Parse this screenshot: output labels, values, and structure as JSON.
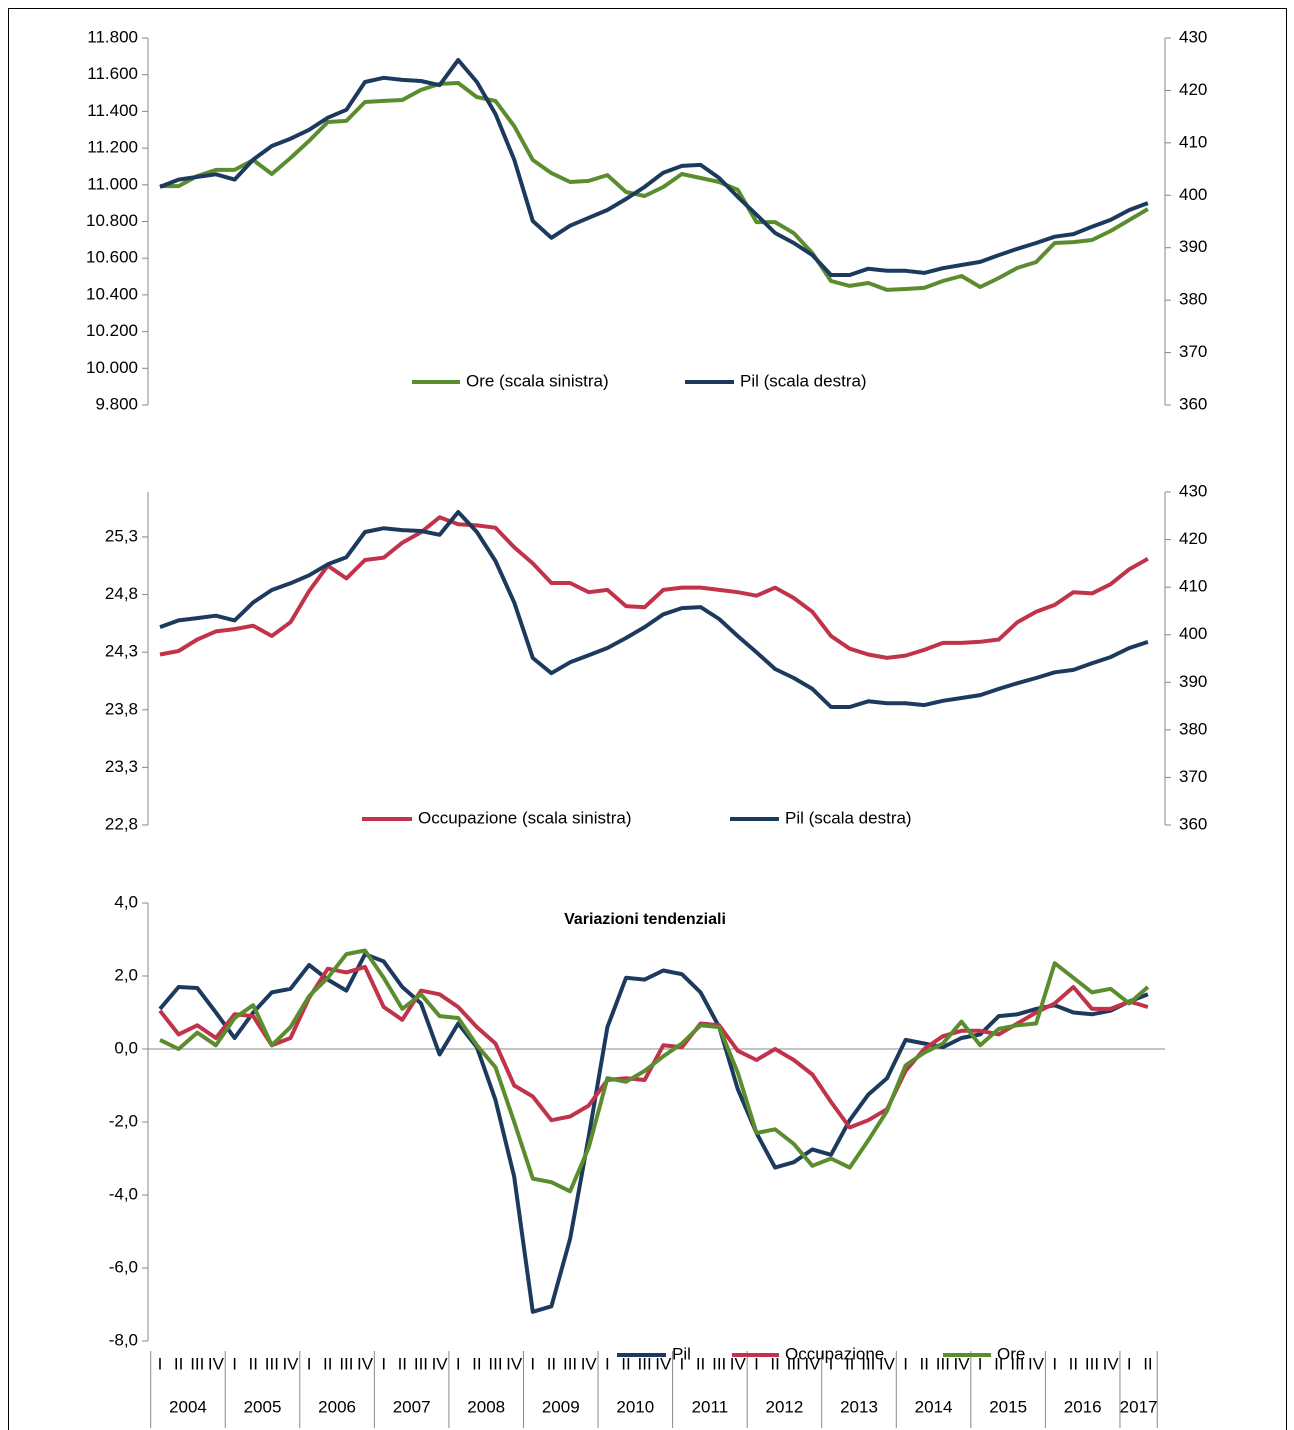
{
  "chart_data": [
    {
      "type": "line",
      "ylim": [
        9800,
        11800
      ],
      "yticks": [
        {
          "value": 9800,
          "label": "9.800"
        },
        {
          "value": 10000,
          "label": "10.000"
        },
        {
          "value": 10200,
          "label": "10.200"
        },
        {
          "value": 10400,
          "label": "10.400"
        },
        {
          "value": 10600,
          "label": "10.600"
        },
        {
          "value": 10800,
          "label": "10.800"
        },
        {
          "value": 11000,
          "label": "11.000"
        },
        {
          "value": 11200,
          "label": "11.200"
        },
        {
          "value": 11400,
          "label": "11.400"
        },
        {
          "value": 11600,
          "label": "11.600"
        },
        {
          "value": 11800,
          "label": "11.800"
        }
      ],
      "y2lim": [
        360,
        430
      ],
      "y2ticks": [
        360,
        370,
        380,
        390,
        400,
        410,
        420,
        430
      ],
      "series": [
        {
          "name": "Ore (scala sinistra)",
          "color": "#5b8c2e",
          "values": [
            10993,
            10993,
            11048,
            11081,
            11081,
            11135,
            11059,
            11146,
            11239,
            11342,
            11348,
            11451,
            11457,
            11462,
            11517,
            11550,
            11555,
            11478,
            11457,
            11320,
            11135,
            11064,
            11015,
            11021,
            11053,
            10961,
            10939,
            10988,
            11059,
            11037,
            11015,
            10972,
            10797,
            10797,
            10737,
            10628,
            10476,
            10449,
            10465,
            10427,
            10432,
            10438,
            10476,
            10503,
            10443,
            10492,
            10547,
            10579,
            10683,
            10688,
            10699,
            10748,
            10808,
            10868
          ]
        },
        {
          "name": "Pil (scala destra)",
          "color": "#1c3a5e",
          "axis": "y2",
          "values": [
            401.6,
            403,
            403.5,
            404,
            403,
            406.8,
            409.4,
            410.8,
            412.5,
            414.8,
            416.3,
            421.6,
            422.4,
            422,
            421.8,
            421,
            425.8,
            421.6,
            415.5,
            406.8,
            395.1,
            391.9,
            394.2,
            395.7,
            397.2,
            399.3,
            401.6,
            404.3,
            405.6,
            405.8,
            403.3,
            399.7,
            396.3,
            392.8,
            390.9,
            388.6,
            384.8,
            384.8,
            386,
            385.6,
            385.6,
            385.2,
            386.1,
            386.7,
            387.3,
            388.6,
            389.8,
            390.9,
            392.1,
            392.6,
            394,
            395.3,
            397.2,
            398.5
          ]
        }
      ]
    },
    {
      "type": "line",
      "ylim": [
        22.8,
        25.69
      ],
      "yticks": [
        {
          "value": 22.8,
          "label": "22,8"
        },
        {
          "value": 23.3,
          "label": "23,3"
        },
        {
          "value": 23.8,
          "label": "23,8"
        },
        {
          "value": 24.3,
          "label": "24,3"
        },
        {
          "value": 24.8,
          "label": "24,8"
        },
        {
          "value": 25.3,
          "label": "25,3"
        }
      ],
      "y2lim": [
        360,
        430
      ],
      "y2ticks": [
        360,
        370,
        380,
        390,
        400,
        410,
        420,
        430
      ],
      "series": [
        {
          "name": "Occupazione (scala sinistra)",
          "color": "#c0334a",
          "values": [
            24.28,
            24.31,
            24.41,
            24.48,
            24.5,
            24.53,
            24.44,
            24.56,
            24.83,
            25.05,
            24.94,
            25.1,
            25.12,
            25.25,
            25.34,
            25.47,
            25.41,
            25.4,
            25.38,
            25.21,
            25.07,
            24.9,
            24.9,
            24.82,
            24.84,
            24.7,
            24.69,
            24.84,
            24.86,
            24.86,
            24.84,
            24.82,
            24.79,
            24.86,
            24.77,
            24.65,
            24.44,
            24.33,
            24.28,
            24.25,
            24.27,
            24.32,
            24.38,
            24.38,
            24.39,
            24.41,
            24.56,
            24.65,
            24.71,
            24.82,
            24.81,
            24.89,
            25.02,
            25.11
          ]
        },
        {
          "name": "Pil (scala destra)",
          "color": "#1c3a5e",
          "axis": "y2",
          "values": [
            401.6,
            403,
            403.5,
            404,
            403,
            406.8,
            409.4,
            410.8,
            412.5,
            414.8,
            416.3,
            421.6,
            422.4,
            422,
            421.8,
            421,
            425.8,
            421.6,
            415.5,
            406.8,
            395.1,
            391.9,
            394.2,
            395.7,
            397.2,
            399.3,
            401.6,
            404.3,
            405.6,
            405.8,
            403.3,
            399.7,
            396.3,
            392.8,
            390.9,
            388.6,
            384.8,
            384.8,
            386,
            385.6,
            385.6,
            385.2,
            386.1,
            386.7,
            387.3,
            388.6,
            389.8,
            390.9,
            392.1,
            392.6,
            394,
            395.3,
            397.2,
            398.5
          ]
        }
      ]
    },
    {
      "type": "line",
      "title": "Variazioni tendenziali",
      "categories": [
        "I",
        "II",
        "III",
        "IV",
        "I",
        "II",
        "III",
        "IV",
        "I",
        "II",
        "III",
        "IV",
        "I",
        "II",
        "III",
        "IV",
        "I",
        "II",
        "III",
        "IV",
        "I",
        "II",
        "III",
        "IV",
        "I",
        "II",
        "III",
        "IV",
        "I",
        "II",
        "III",
        "IV",
        "I",
        "II",
        "III",
        "IV",
        "I",
        "II",
        "III",
        "IV",
        "I",
        "II",
        "III",
        "IV",
        "I",
        "II",
        "III",
        "IV",
        "I",
        "II",
        "III",
        "IV",
        "I",
        "II"
      ],
      "years": [
        "2004",
        "2005",
        "2006",
        "2007",
        "2008",
        "2009",
        "2010",
        "2011",
        "2012",
        "2013",
        "2014",
        "2015",
        "2016",
        "2017"
      ],
      "ylim": [
        -8,
        4
      ],
      "yticks": [
        {
          "value": -8,
          "label": "-8,0"
        },
        {
          "value": -6,
          "label": "-6,0"
        },
        {
          "value": -4,
          "label": "-4,0"
        },
        {
          "value": -2,
          "label": "-2,0"
        },
        {
          "value": 0,
          "label": "0,0"
        },
        {
          "value": 2,
          "label": "2,0"
        },
        {
          "value": 4,
          "label": "4,0"
        }
      ],
      "series": [
        {
          "name": "Pil",
          "color": "#1c3a5e",
          "values": [
            1.1,
            1.7,
            1.67,
            1.0,
            0.3,
            1.0,
            1.55,
            1.65,
            2.3,
            1.9,
            1.6,
            2.6,
            2.4,
            1.7,
            1.25,
            -0.15,
            0.7,
            0.05,
            -1.4,
            -3.5,
            -7.2,
            -7.05,
            -5.2,
            -2.4,
            0.6,
            1.95,
            1.9,
            2.15,
            2.05,
            1.55,
            0.6,
            -1.1,
            -2.3,
            -3.25,
            -3.1,
            -2.75,
            -2.9,
            -1.95,
            -1.25,
            -0.8,
            0.25,
            0.15,
            0.05,
            0.3,
            0.4,
            0.9,
            0.95,
            1.1,
            1.2,
            1.0,
            0.95,
            1.05,
            1.3,
            1.5
          ]
        },
        {
          "name": "Occupazione",
          "color": "#c0334a",
          "values": [
            1.05,
            0.4,
            0.65,
            0.3,
            0.95,
            0.9,
            0.1,
            0.3,
            1.4,
            2.2,
            2.1,
            2.25,
            1.15,
            0.8,
            1.6,
            1.5,
            1.15,
            0.6,
            0.15,
            -1.0,
            -1.3,
            -1.95,
            -1.85,
            -1.55,
            -0.85,
            -0.8,
            -0.85,
            0.1,
            0.05,
            0.7,
            0.65,
            -0.05,
            -0.3,
            0.0,
            -0.3,
            -0.7,
            -1.45,
            -2.15,
            -1.95,
            -1.65,
            -0.6,
            0.0,
            0.35,
            0.5,
            0.5,
            0.4,
            0.7,
            1.0,
            1.25,
            1.7,
            1.1,
            1.1,
            1.3,
            1.15
          ]
        },
        {
          "name": "Ore",
          "color": "#5b8c2e",
          "values": [
            0.25,
            0.0,
            0.45,
            0.1,
            0.85,
            1.2,
            0.1,
            0.6,
            1.45,
            1.95,
            2.6,
            2.7,
            1.95,
            1.1,
            1.5,
            0.9,
            0.85,
            0.1,
            -0.5,
            -2.0,
            -3.55,
            -3.65,
            -3.9,
            -2.7,
            -0.8,
            -0.9,
            -0.6,
            -0.2,
            0.15,
            0.65,
            0.6,
            -0.65,
            -2.3,
            -2.2,
            -2.6,
            -3.2,
            -3.0,
            -3.25,
            -2.5,
            -1.7,
            -0.45,
            -0.1,
            0.15,
            0.75,
            0.1,
            0.55,
            0.65,
            0.7,
            2.35,
            1.95,
            1.55,
            1.65,
            1.25,
            1.7
          ]
        }
      ]
    }
  ]
}
